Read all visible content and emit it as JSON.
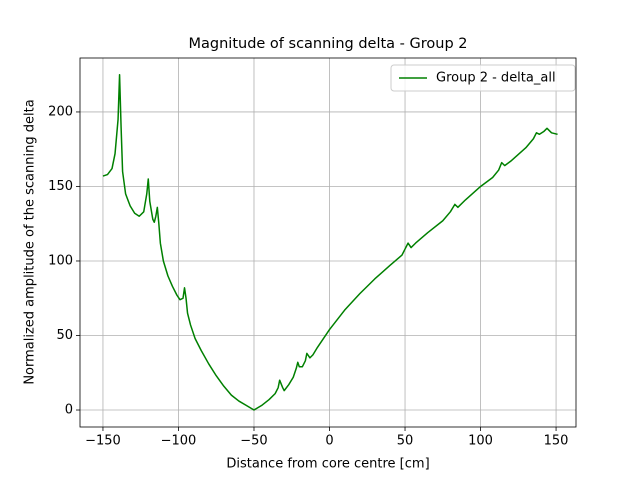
{
  "chart_data": {
    "type": "line",
    "title": "Magnitude of scanning delta - Group 2",
    "x_label": "Distance from core centre [cm]",
    "y_label": "Normalized amplitude of the scanning delta",
    "x": [
      -150,
      -147,
      -144,
      -142,
      -140,
      -139,
      -138,
      -137,
      -135,
      -132,
      -129,
      -126,
      -123,
      -121,
      -120,
      -119,
      -117,
      -116,
      -115,
      -114,
      -113,
      -112,
      -110,
      -107,
      -104,
      -101,
      -99,
      -97,
      -96,
      -95,
      -94,
      -92,
      -89,
      -85,
      -80,
      -75,
      -70,
      -65,
      -60,
      -55,
      -50,
      -45,
      -40,
      -36,
      -34,
      -33,
      -31,
      -30,
      -27,
      -24,
      -22,
      -21,
      -20,
      -18,
      -16,
      -15,
      -13,
      -11,
      -8,
      0,
      10,
      20,
      30,
      40,
      48,
      50,
      52,
      54,
      57,
      65,
      75,
      80,
      83,
      85,
      90,
      100,
      108,
      112,
      114,
      116,
      120,
      130,
      135,
      137,
      139,
      142,
      144,
      147,
      151
    ],
    "series": [
      {
        "name": "Group 2 - delta_all",
        "color": "#008000",
        "values": [
          157,
          158,
          162,
          172,
          195,
          225,
          190,
          160,
          145,
          137,
          132,
          130,
          133,
          145,
          155,
          140,
          128,
          126,
          130,
          136,
          125,
          112,
          100,
          90,
          83,
          77,
          74,
          75,
          82,
          75,
          65,
          57,
          48,
          40,
          31,
          23,
          16,
          10,
          6,
          3,
          0,
          3,
          7,
          11,
          15,
          20,
          15,
          13,
          17,
          22,
          28,
          32,
          29,
          29,
          33,
          38,
          35,
          37,
          42,
          54,
          67,
          78,
          88,
          97,
          104,
          108,
          112,
          109,
          112,
          119,
          127,
          133,
          138,
          136,
          141,
          150,
          156,
          161,
          166,
          164,
          167,
          176,
          182,
          186,
          185,
          187,
          189,
          186,
          185
        ]
      }
    ],
    "xlim": [
      -165.2,
      163.2
    ],
    "ylim": [
      -11.4,
      236.2
    ],
    "xticks": [
      {
        "value": -150,
        "label": "−150"
      },
      {
        "value": -100,
        "label": "−100"
      },
      {
        "value": -50,
        "label": "−50"
      },
      0,
      50,
      100,
      150
    ],
    "yticks": [
      0,
      50,
      100,
      150,
      200
    ],
    "grid": true,
    "legend": "upper right"
  }
}
